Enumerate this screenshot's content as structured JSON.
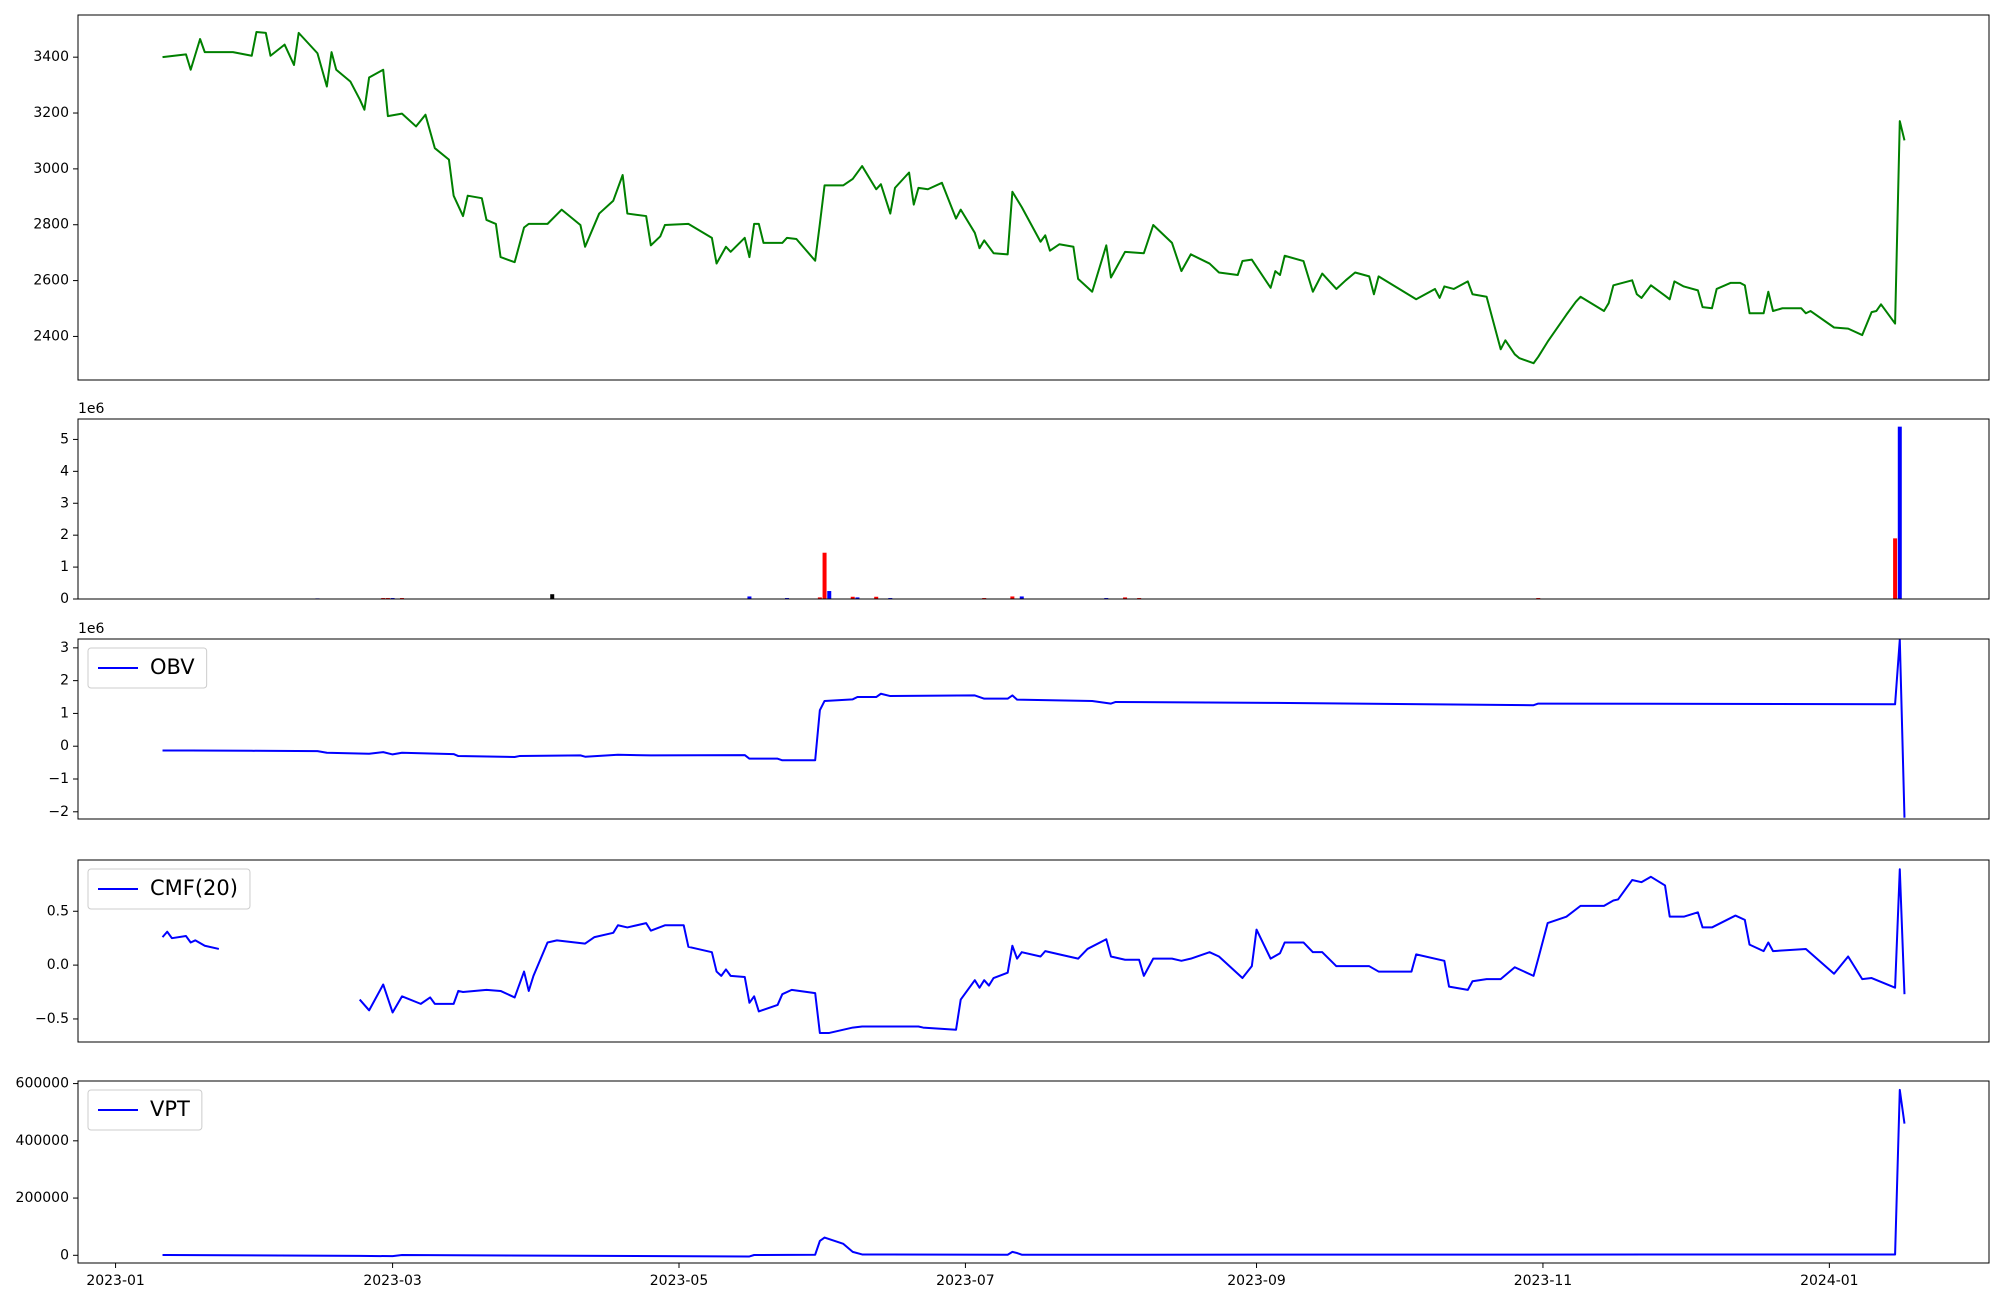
{
  "chart_data": [
    {
      "type": "line",
      "color": "#008000",
      "xlim": [
        "2022-12-24",
        "2024-02-04"
      ],
      "ylim": [
        2244,
        3551
      ],
      "yticks": [
        2400,
        2600,
        2800,
        3000,
        3200,
        3400
      ],
      "x": [
        "2023-01-11",
        "2023-01-16",
        "2023-01-17",
        "2023-01-19",
        "2023-01-20",
        "2023-01-26",
        "2023-01-30",
        "2023-01-31",
        "2023-02-02",
        "2023-02-03",
        "2023-02-06",
        "2023-02-08",
        "2023-02-09",
        "2023-02-13",
        "2023-02-15",
        "2023-02-16",
        "2023-02-17",
        "2023-02-20",
        "2023-02-22",
        "2023-02-23",
        "2023-02-24",
        "2023-02-27",
        "2023-02-28",
        "2023-03-03",
        "2023-03-06",
        "2023-03-08",
        "2023-03-10",
        "2023-03-13",
        "2023-03-14",
        "2023-03-16",
        "2023-03-17",
        "2023-03-20",
        "2023-03-21",
        "2023-03-23",
        "2023-03-24",
        "2023-03-27",
        "2023-03-29",
        "2023-03-30",
        "2023-04-03",
        "2023-04-06",
        "2023-04-10",
        "2023-04-11",
        "2023-04-14",
        "2023-04-17",
        "2023-04-19",
        "2023-04-20",
        "2023-04-24",
        "2023-04-25",
        "2023-04-27",
        "2023-04-28",
        "2023-05-03",
        "2023-05-08",
        "2023-05-09",
        "2023-05-11",
        "2023-05-12",
        "2023-05-15",
        "2023-05-16",
        "2023-05-17",
        "2023-05-18",
        "2023-05-19",
        "2023-05-23",
        "2023-05-24",
        "2023-05-26",
        "2023-05-30",
        "2023-05-31",
        "2023-06-01",
        "2023-06-05",
        "2023-06-07",
        "2023-06-09",
        "2023-06-12",
        "2023-06-13",
        "2023-06-15",
        "2023-06-16",
        "2023-06-19",
        "2023-06-20",
        "2023-06-21",
        "2023-06-23",
        "2023-06-26",
        "2023-06-29",
        "2023-06-30",
        "2023-07-03",
        "2023-07-04",
        "2023-07-05",
        "2023-07-07",
        "2023-07-10",
        "2023-07-11",
        "2023-07-13",
        "2023-07-17",
        "2023-07-18",
        "2023-07-19",
        "2023-07-21",
        "2023-07-24",
        "2023-07-25",
        "2023-07-28",
        "2023-07-31",
        "2023-08-01",
        "2023-08-04",
        "2023-08-08",
        "2023-08-10",
        "2023-08-14",
        "2023-08-16",
        "2023-08-18",
        "2023-08-22",
        "2023-08-24",
        "2023-08-28",
        "2023-08-29",
        "2023-08-31",
        "2023-09-04",
        "2023-09-05",
        "2023-09-06",
        "2023-09-07",
        "2023-09-11",
        "2023-09-13",
        "2023-09-15",
        "2023-09-18",
        "2023-09-20",
        "2023-09-22",
        "2023-09-25",
        "2023-09-26",
        "2023-09-27",
        "2023-10-05",
        "2023-10-09",
        "2023-10-10",
        "2023-10-11",
        "2023-10-13",
        "2023-10-16",
        "2023-10-17",
        "2023-10-20",
        "2023-10-23",
        "2023-10-24",
        "2023-10-26",
        "2023-10-27",
        "2023-10-30",
        "2023-10-31",
        "2023-11-02",
        "2023-11-06",
        "2023-11-08",
        "2023-11-09",
        "2023-11-14",
        "2023-11-15",
        "2023-11-16",
        "2023-11-20",
        "2023-11-21",
        "2023-11-22",
        "2023-11-24",
        "2023-11-27",
        "2023-11-28",
        "2023-11-29",
        "2023-12-01",
        "2023-12-04",
        "2023-12-05",
        "2023-12-07",
        "2023-12-08",
        "2023-12-11",
        "2023-12-13",
        "2023-12-14",
        "2023-12-15",
        "2023-12-18",
        "2023-12-19",
        "2023-12-20",
        "2023-12-22",
        "2023-12-26",
        "2023-12-27",
        "2023-12-28",
        "2024-01-02",
        "2024-01-05",
        "2024-01-08",
        "2024-01-10",
        "2024-01-11",
        "2024-01-12",
        "2024-01-15",
        "2024-01-16",
        "2024-01-17"
      ],
      "values": [
        3400,
        3410,
        3355,
        3465,
        3418,
        3418,
        3405,
        3490,
        3487,
        3405,
        3445,
        3372,
        3487,
        3414,
        3295,
        3418,
        3355,
        3313,
        3249,
        3212,
        3327,
        3355,
        3189,
        3198,
        3152,
        3194,
        3074,
        3033,
        2904,
        2831,
        2904,
        2895,
        2817,
        2803,
        2684,
        2666,
        2790,
        2803,
        2803,
        2854,
        2799,
        2721,
        2840,
        2886,
        2978,
        2840,
        2831,
        2726,
        2758,
        2799,
        2803,
        2753,
        2661,
        2721,
        2703,
        2753,
        2684,
        2803,
        2803,
        2735,
        2735,
        2753,
        2749,
        2671,
        2803,
        2941,
        2941,
        2964,
        3010,
        2927,
        2945,
        2840,
        2932,
        2987,
        2872,
        2932,
        2927,
        2950,
        2822,
        2854,
        2771,
        2716,
        2744,
        2698,
        2694,
        2918,
        2863,
        2739,
        2762,
        2707,
        2730,
        2721,
        2606,
        2560,
        2726,
        2611,
        2703,
        2698,
        2799,
        2735,
        2634,
        2694,
        2661,
        2629,
        2620,
        2670,
        2675,
        2574,
        2634,
        2620,
        2689,
        2670,
        2560,
        2625,
        2570,
        2601,
        2629,
        2615,
        2551,
        2615,
        2533,
        2570,
        2538,
        2579,
        2570,
        2597,
        2551,
        2542,
        2354,
        2386,
        2336,
        2322,
        2304,
        2327,
        2381,
        2478,
        2524,
        2542,
        2491,
        2519,
        2583,
        2601,
        2551,
        2538,
        2583,
        2546,
        2533,
        2597,
        2579,
        2565,
        2505,
        2501,
        2570,
        2592,
        2592,
        2583,
        2483,
        2483,
        2560,
        2491,
        2501,
        2501,
        2483,
        2491,
        2432,
        2428,
        2405,
        2487,
        2491,
        2515,
        2446,
        3171,
        3102
      ]
    },
    {
      "type": "bar",
      "offset_label": "1e6",
      "xlim": [
        "2022-12-24",
        "2024-02-04"
      ],
      "ylim": [
        0,
        5.64
      ],
      "yticks": [
        0,
        1,
        2,
        3,
        4,
        5
      ],
      "x": [
        "2023-02-13",
        "2023-02-27",
        "2023-02-28",
        "2023-03-01",
        "2023-03-03",
        "2023-04-04",
        "2023-05-16",
        "2023-05-24",
        "2023-05-31",
        "2023-06-01",
        "2023-06-02",
        "2023-06-07",
        "2023-06-08",
        "2023-06-12",
        "2023-06-15",
        "2023-07-05",
        "2023-07-11",
        "2023-07-13",
        "2023-07-31",
        "2023-08-04",
        "2023-08-07",
        "2023-10-31",
        "2024-01-15",
        "2024-01-16"
      ],
      "values": [
        0.02,
        0.03,
        0.03,
        0.03,
        0.03,
        0.15,
        0.08,
        0.03,
        0.05,
        1.45,
        0.25,
        0.07,
        0.05,
        0.07,
        0.03,
        0.03,
        0.08,
        0.08,
        0.03,
        0.05,
        0.03,
        0.03,
        1.9,
        5.4
      ],
      "colors": [
        "#0000ff",
        "#ff0000",
        "#ff0000",
        "#0000ff",
        "#ff0000",
        "#000000",
        "#0000ff",
        "#0000ff",
        "#ff0000",
        "#ff0000",
        "#0000ff",
        "#ff0000",
        "#0000ff",
        "#ff0000",
        "#0000ff",
        "#ff0000",
        "#ff0000",
        "#0000ff",
        "#0000ff",
        "#ff0000",
        "#ff0000",
        "#ff0000",
        "#ff0000",
        "#0000ff"
      ]
    },
    {
      "type": "line",
      "offset_label": "1e6",
      "legend": "upper left",
      "xlim": [
        "2022-12-24",
        "2024-02-04"
      ],
      "ylim": [
        -2.22,
        3.27
      ],
      "yticks": [
        {
          "value": -2,
          "label": "−2"
        },
        {
          "value": -1,
          "label": "−1"
        },
        0,
        1,
        2,
        3
      ],
      "x": [
        "2023-01-11",
        "2023-01-17",
        "2023-01-30",
        "2023-02-13",
        "2023-02-15",
        "2023-02-24",
        "2023-02-27",
        "2023-03-01",
        "2023-03-03",
        "2023-03-14",
        "2023-03-15",
        "2023-03-27",
        "2023-03-28",
        "2023-04-10",
        "2023-04-11",
        "2023-04-18",
        "2023-04-25",
        "2023-05-15",
        "2023-05-16",
        "2023-05-22",
        "2023-05-23",
        "2023-05-30",
        "2023-05-31",
        "2023-06-01",
        "2023-06-07",
        "2023-06-08",
        "2023-06-12",
        "2023-06-13",
        "2023-06-15",
        "2023-07-03",
        "2023-07-05",
        "2023-07-10",
        "2023-07-11",
        "2023-07-12",
        "2023-07-28",
        "2023-08-01",
        "2023-08-02",
        "2023-09-05",
        "2023-10-30",
        "2023-10-31",
        "2024-01-15",
        "2024-01-16",
        "2024-01-17"
      ],
      "series": [
        {
          "name": "OBV",
          "color": "#0000ff",
          "values": [
            -0.13,
            -0.13,
            -0.14,
            -0.15,
            -0.2,
            -0.23,
            -0.18,
            -0.25,
            -0.2,
            -0.24,
            -0.3,
            -0.33,
            -0.3,
            -0.28,
            -0.32,
            -0.26,
            -0.28,
            -0.27,
            -0.38,
            -0.38,
            -0.43,
            -0.43,
            1.1,
            1.38,
            1.43,
            1.5,
            1.5,
            1.6,
            1.53,
            1.55,
            1.45,
            1.45,
            1.55,
            1.42,
            1.38,
            1.3,
            1.35,
            1.32,
            1.25,
            1.3,
            1.28,
            3.25,
            -2.18
          ]
        }
      ]
    },
    {
      "type": "line",
      "legend": "upper left",
      "xlim": [
        "2022-12-24",
        "2024-02-04"
      ],
      "ylim": [
        -0.714,
        0.976
      ],
      "yticks": [
        {
          "value": -0.5,
          "label": "−0.5"
        },
        {
          "value": 0,
          "label": "0.0"
        },
        0.5
      ],
      "x": [
        "2023-01-11",
        "2023-01-12",
        "2023-01-13",
        "2023-01-16",
        "2023-01-17",
        "2023-01-18",
        "2023-01-20",
        "2023-01-23",
        "2023-01-24",
        "2023-02-22",
        "2023-02-24",
        "2023-02-27",
        "2023-03-01",
        "2023-03-03",
        "2023-03-07",
        "2023-03-09",
        "2023-03-10",
        "2023-03-14",
        "2023-03-15",
        "2023-03-16",
        "2023-03-21",
        "2023-03-24",
        "2023-03-27",
        "2023-03-29",
        "2023-03-30",
        "2023-03-31",
        "2023-04-03",
        "2023-04-05",
        "2023-04-11",
        "2023-04-13",
        "2023-04-17",
        "2023-04-18",
        "2023-04-20",
        "2023-04-24",
        "2023-04-25",
        "2023-04-28",
        "2023-05-02",
        "2023-05-03",
        "2023-05-08",
        "2023-05-09",
        "2023-05-10",
        "2023-05-11",
        "2023-05-12",
        "2023-05-15",
        "2023-05-16",
        "2023-05-17",
        "2023-05-18",
        "2023-05-22",
        "2023-05-23",
        "2023-05-25",
        "2023-05-30",
        "2023-05-31",
        "2023-06-02",
        "2023-06-07",
        "2023-06-09",
        "2023-06-13",
        "2023-06-21",
        "2023-06-22",
        "2023-06-29",
        "2023-06-30",
        "2023-07-03",
        "2023-07-04",
        "2023-07-05",
        "2023-07-06",
        "2023-07-07",
        "2023-07-10",
        "2023-07-11",
        "2023-07-12",
        "2023-07-13",
        "2023-07-17",
        "2023-07-18",
        "2023-07-21",
        "2023-07-25",
        "2023-07-27",
        "2023-07-31",
        "2023-08-01",
        "2023-08-04",
        "2023-08-07",
        "2023-08-08",
        "2023-08-10",
        "2023-08-14",
        "2023-08-16",
        "2023-08-18",
        "2023-08-22",
        "2023-08-24",
        "2023-08-29",
        "2023-08-31",
        "2023-09-01",
        "2023-09-04",
        "2023-09-06",
        "2023-09-07",
        "2023-09-11",
        "2023-09-13",
        "2023-09-15",
        "2023-09-18",
        "2023-09-22",
        "2023-09-25",
        "2023-09-27",
        "2023-10-04",
        "2023-10-05",
        "2023-10-11",
        "2023-10-12",
        "2023-10-16",
        "2023-10-17",
        "2023-10-20",
        "2023-10-23",
        "2023-10-26",
        "2023-10-30",
        "2023-10-31",
        "2023-11-02",
        "2023-11-06",
        "2023-11-09",
        "2023-11-14",
        "2023-11-16",
        "2023-11-17",
        "2023-11-20",
        "2023-11-22",
        "2023-11-24",
        "2023-11-27",
        "2023-11-28",
        "2023-12-01",
        "2023-12-04",
        "2023-12-05",
        "2023-12-07",
        "2023-12-12",
        "2023-12-14",
        "2023-12-15",
        "2023-12-18",
        "2023-12-19",
        "2023-12-20",
        "2023-12-27",
        "2024-01-02",
        "2024-01-05",
        "2024-01-08",
        "2024-01-10",
        "2024-01-15",
        "2024-01-16",
        "2024-01-17"
      ],
      "series": [
        {
          "name": "CMF(20)",
          "color": "#0000ff",
          "values": [
            0.26,
            0.31,
            0.25,
            0.27,
            0.21,
            0.23,
            0.18,
            0.15,
            null,
            -0.32,
            -0.42,
            -0.18,
            -0.44,
            -0.29,
            -0.36,
            -0.3,
            -0.36,
            -0.36,
            -0.24,
            -0.25,
            -0.23,
            -0.24,
            -0.3,
            -0.06,
            -0.24,
            -0.1,
            0.21,
            0.23,
            0.2,
            0.26,
            0.3,
            0.37,
            0.35,
            0.39,
            0.32,
            0.37,
            0.37,
            0.17,
            0.12,
            -0.06,
            -0.1,
            -0.04,
            -0.1,
            -0.11,
            -0.35,
            -0.29,
            -0.43,
            -0.37,
            -0.27,
            -0.23,
            -0.26,
            -0.63,
            -0.63,
            -0.58,
            -0.57,
            -0.57,
            -0.57,
            -0.58,
            -0.6,
            -0.32,
            -0.14,
            -0.21,
            -0.14,
            -0.19,
            -0.12,
            -0.07,
            0.18,
            0.06,
            0.12,
            0.08,
            0.13,
            0.1,
            0.06,
            0.15,
            0.24,
            0.08,
            0.05,
            0.05,
            -0.1,
            0.06,
            0.06,
            0.04,
            0.06,
            0.12,
            0.08,
            -0.12,
            -0.01,
            0.33,
            0.06,
            0.11,
            0.21,
            0.21,
            0.12,
            0.12,
            -0.01,
            -0.01,
            -0.01,
            -0.06,
            -0.06,
            0.1,
            0.04,
            -0.2,
            -0.23,
            -0.15,
            -0.13,
            -0.13,
            -0.02,
            -0.1,
            0.06,
            0.39,
            0.45,
            0.55,
            0.55,
            0.6,
            0.61,
            0.79,
            0.77,
            0.82,
            0.74,
            0.45,
            0.45,
            0.49,
            0.35,
            0.35,
            0.46,
            0.42,
            0.19,
            0.13,
            0.21,
            0.13,
            0.15,
            -0.08,
            0.08,
            -0.13,
            -0.12,
            -0.21,
            0.89,
            -0.27
          ]
        }
      ]
    },
    {
      "type": "line",
      "legend": "upper left",
      "xlim": [
        "2022-12-24",
        "2024-02-04"
      ],
      "ylim": [
        -26900,
        609000
      ],
      "yticks": [
        0,
        200000,
        400000,
        600000
      ],
      "xticks": [
        {
          "value": "2023-01-01",
          "label": "2023-01"
        },
        {
          "value": "2023-03-01",
          "label": "2023-03"
        },
        {
          "value": "2023-05-01",
          "label": "2023-05"
        },
        {
          "value": "2023-07-01",
          "label": "2023-07"
        },
        {
          "value": "2023-09-01",
          "label": "2023-09"
        },
        {
          "value": "2023-11-01",
          "label": "2023-11"
        },
        {
          "value": "2024-01-01",
          "label": "2024-01"
        }
      ],
      "x": [
        "2023-01-11",
        "2023-01-12",
        "2023-02-22",
        "2023-03-01",
        "2023-03-03",
        "2023-05-16",
        "2023-05-17",
        "2023-05-30",
        "2023-05-31",
        "2023-06-01",
        "2023-06-05",
        "2023-06-07",
        "2023-06-09",
        "2023-07-10",
        "2023-07-11",
        "2023-07-12",
        "2023-07-13",
        "2024-01-15",
        "2024-01-16",
        "2024-01-17"
      ],
      "series": [
        {
          "name": "VPT",
          "color": "#0000ff",
          "values": [
            1000,
            1000,
            -2000,
            -3000,
            1000,
            -4000,
            1000,
            2000,
            50000,
            62000,
            40000,
            12000,
            3000,
            2000,
            12000,
            8000,
            2000,
            3000,
            578000,
            460000
          ]
        }
      ]
    }
  ]
}
